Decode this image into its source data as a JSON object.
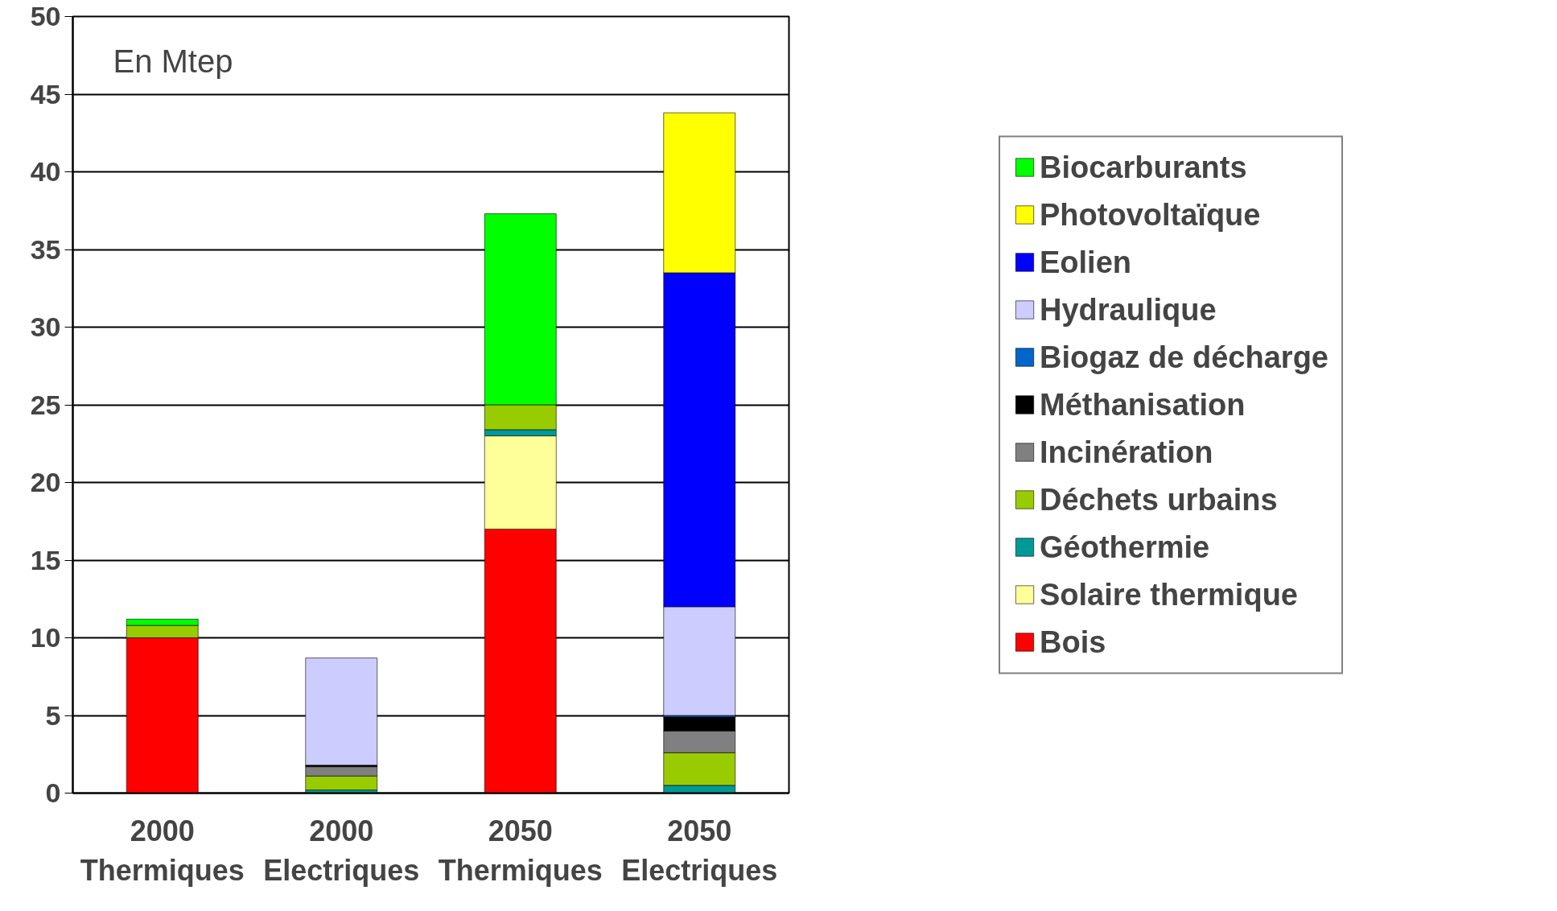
{
  "chart_data": {
    "type": "bar",
    "stacked": true,
    "categories": [
      "2000\nThermiques",
      "2000\nElectriques",
      "2050\nThermiques",
      "2050\nElectriques"
    ],
    "series": [
      {
        "name": "Bois",
        "color": "#ff0000",
        "values": [
          10,
          null,
          17,
          null
        ]
      },
      {
        "name": "Solaire thermique",
        "color": "#ffff99",
        "values": [
          null,
          null,
          6,
          null
        ]
      },
      {
        "name": "Géothermie",
        "color": "#009999",
        "values": [
          null,
          0.2,
          0.4,
          0.5
        ]
      },
      {
        "name": "Déchets urbains",
        "color": "#99cc00",
        "values": [
          0.8,
          0.9,
          1.6,
          2.1
        ]
      },
      {
        "name": "Incinération",
        "color": "#808080",
        "values": [
          null,
          0.6,
          null,
          1.4
        ]
      },
      {
        "name": "Méthanisation",
        "color": "#000000",
        "values": [
          null,
          0.1,
          null,
          0.9
        ]
      },
      {
        "name": "Biogaz de décharge",
        "color": "#0066cc",
        "values": [
          null,
          null,
          null,
          0.1
        ]
      },
      {
        "name": "Hydraulique",
        "color": "#ccccff",
        "values": [
          null,
          6.9,
          null,
          7.0
        ]
      },
      {
        "name": "Eolien",
        "color": "#0000ff",
        "values": [
          null,
          null,
          null,
          21.5
        ]
      },
      {
        "name": "Photovoltaïque",
        "color": "#ffff00",
        "values": [
          null,
          null,
          null,
          10.3
        ]
      },
      {
        "name": "Biocarburants",
        "color": "#00ff00",
        "values": [
          0.4,
          null,
          12.3,
          null
        ]
      }
    ],
    "ylim": [
      0,
      50
    ],
    "yticks": [
      0,
      5,
      10,
      15,
      20,
      25,
      30,
      35,
      40,
      45,
      50
    ],
    "grid": "y",
    "legend": "right",
    "annotations": [
      "En Mtep"
    ]
  }
}
